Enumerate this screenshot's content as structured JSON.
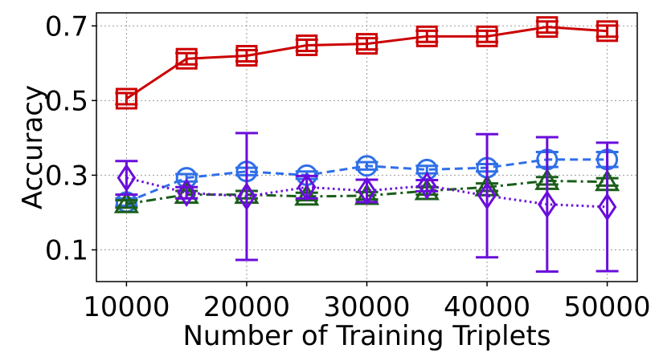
{
  "chart_data": {
    "type": "line",
    "xlabel": "Number of Training Triplets",
    "ylabel": "Accuracy",
    "xlim": [
      7500,
      52500
    ],
    "ylim": [
      0.015,
      0.735
    ],
    "x": [
      10000,
      15000,
      20000,
      25000,
      30000,
      35000,
      40000,
      45000,
      50000
    ],
    "x_ticks": [
      10000,
      20000,
      30000,
      40000,
      50000
    ],
    "x_tick_labels": [
      "10000",
      "20000",
      "30000",
      "40000",
      "50000"
    ],
    "y_ticks": [
      0.1,
      0.3,
      0.5,
      0.7
    ],
    "y_tick_labels": [
      "0.1",
      "0.3",
      "0.5",
      "0.7"
    ],
    "grid": true,
    "series": [
      {
        "color": "#cc0000",
        "marker": "square",
        "line_style": "solid",
        "values": [
          0.505,
          0.612,
          0.62,
          0.648,
          0.652,
          0.672,
          0.672,
          0.697,
          0.686
        ],
        "errors": [
          0.015,
          0.015,
          0.015,
          0.015,
          0.015,
          0.015,
          0.015,
          0.015,
          0.015
        ]
      },
      {
        "color": "#2f6fe8",
        "marker": "circle",
        "line_style": "dashed",
        "values": [
          0.228,
          0.293,
          0.31,
          0.3,
          0.325,
          0.315,
          0.32,
          0.342,
          0.342
        ],
        "errors": [
          0.01,
          0.01,
          0.01,
          0.01,
          0.01,
          0.01,
          0.01,
          0.02,
          0.02
        ]
      },
      {
        "color": "#1a5e1a",
        "marker": "triangle",
        "line_style": "dashdot",
        "values": [
          0.223,
          0.248,
          0.248,
          0.243,
          0.245,
          0.258,
          0.268,
          0.285,
          0.282
        ],
        "errors": [
          0.01,
          0.01,
          0.01,
          0.01,
          0.01,
          0.01,
          0.01,
          0.01,
          0.01
        ]
      },
      {
        "color": "#6a0ddb",
        "marker": "diamond",
        "line_style": "dotted",
        "values": [
          0.293,
          0.253,
          0.243,
          0.268,
          0.258,
          0.272,
          0.245,
          0.222,
          0.215
        ],
        "errors": [
          0.045,
          0.015,
          0.17,
          0.03,
          0.03,
          0.015,
          0.165,
          0.18,
          0.172
        ]
      }
    ]
  }
}
